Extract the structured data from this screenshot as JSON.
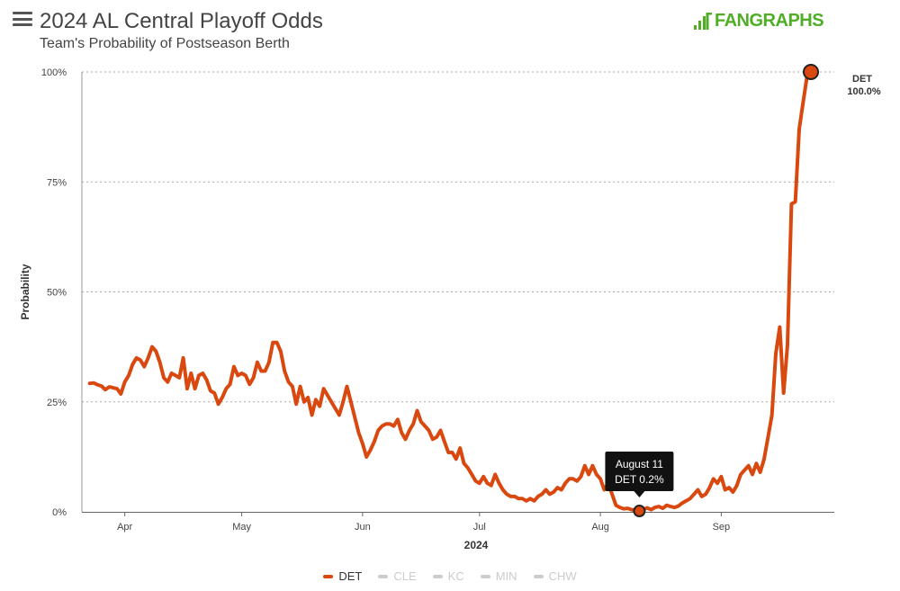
{
  "header": {
    "title": "2024 AL Central Playoff Odds",
    "subtitle": "Team's Probability of Postseason Berth",
    "logo_text": "FANGRAPHS"
  },
  "colors": {
    "det": "#d9480f",
    "grid": "#aaaaaa",
    "axis": "#666666",
    "legend_inactive": "#cccccc",
    "logo": "#50ae26"
  },
  "chart_data": {
    "type": "line",
    "xlabel": "2024",
    "ylabel": "Probability",
    "ylim": [
      0,
      100
    ],
    "yticks": [
      0,
      25,
      50,
      75,
      100
    ],
    "ytick_labels": [
      "0%",
      "25%",
      "50%",
      "75%",
      "100%"
    ],
    "x_domain": [
      "2024-03-21",
      "2024-09-30"
    ],
    "month_ticks": [
      {
        "date": "2024-04-01",
        "label": "Apr"
      },
      {
        "date": "2024-05-01",
        "label": "May"
      },
      {
        "date": "2024-06-01",
        "label": "Jun"
      },
      {
        "date": "2024-07-01",
        "label": "Jul"
      },
      {
        "date": "2024-08-01",
        "label": "Aug"
      },
      {
        "date": "2024-09-01",
        "label": "Sep"
      }
    ],
    "grid": true,
    "legend_position": "bottom",
    "series": [
      {
        "name": "DET",
        "active": true,
        "end_label": "DET",
        "end_value_label": "100.0%",
        "points": [
          [
            "2024-03-23",
            29.2
          ],
          [
            "2024-03-24",
            29.3
          ],
          [
            "2024-03-25",
            28.9
          ],
          [
            "2024-03-26",
            28.6
          ],
          [
            "2024-03-27",
            27.8
          ],
          [
            "2024-03-28",
            28.4
          ],
          [
            "2024-03-29",
            28.2
          ],
          [
            "2024-03-30",
            28.0
          ],
          [
            "2024-03-31",
            26.8
          ],
          [
            "2024-04-01",
            29.5
          ],
          [
            "2024-04-02",
            31.0
          ],
          [
            "2024-04-03",
            33.5
          ],
          [
            "2024-04-04",
            35.0
          ],
          [
            "2024-04-05",
            34.5
          ],
          [
            "2024-04-06",
            33.0
          ],
          [
            "2024-04-07",
            35.0
          ],
          [
            "2024-04-08",
            37.5
          ],
          [
            "2024-04-09",
            36.5
          ],
          [
            "2024-04-10",
            34.0
          ],
          [
            "2024-04-11",
            30.5
          ],
          [
            "2024-04-12",
            29.5
          ],
          [
            "2024-04-13",
            31.5
          ],
          [
            "2024-04-14",
            31.0
          ],
          [
            "2024-04-15",
            30.5
          ],
          [
            "2024-04-16",
            35.0
          ],
          [
            "2024-04-17",
            28.0
          ],
          [
            "2024-04-18",
            31.5
          ],
          [
            "2024-04-19",
            28.0
          ],
          [
            "2024-04-20",
            31.0
          ],
          [
            "2024-04-21",
            31.5
          ],
          [
            "2024-04-22",
            30.0
          ],
          [
            "2024-04-23",
            27.5
          ],
          [
            "2024-04-24",
            27.0
          ],
          [
            "2024-04-25",
            24.5
          ],
          [
            "2024-04-26",
            26.0
          ],
          [
            "2024-04-27",
            28.0
          ],
          [
            "2024-04-28",
            29.0
          ],
          [
            "2024-04-29",
            33.0
          ],
          [
            "2024-04-30",
            31.0
          ],
          [
            "2024-05-01",
            31.5
          ],
          [
            "2024-05-02",
            31.0
          ],
          [
            "2024-05-03",
            29.0
          ],
          [
            "2024-05-04",
            30.5
          ],
          [
            "2024-05-05",
            34.0
          ],
          [
            "2024-05-06",
            32.0
          ],
          [
            "2024-05-07",
            32.0
          ],
          [
            "2024-05-08",
            34.0
          ],
          [
            "2024-05-09",
            38.5
          ],
          [
            "2024-05-10",
            38.5
          ],
          [
            "2024-05-11",
            36.5
          ],
          [
            "2024-05-12",
            32.0
          ],
          [
            "2024-05-13",
            29.5
          ],
          [
            "2024-05-14",
            28.5
          ],
          [
            "2024-05-15",
            24.5
          ],
          [
            "2024-05-16",
            28.5
          ],
          [
            "2024-05-17",
            25.0
          ],
          [
            "2024-05-18",
            26.0
          ],
          [
            "2024-05-19",
            22.0
          ],
          [
            "2024-05-20",
            25.5
          ],
          [
            "2024-05-21",
            24.0
          ],
          [
            "2024-05-22",
            28.0
          ],
          [
            "2024-05-23",
            26.5
          ],
          [
            "2024-05-24",
            25.0
          ],
          [
            "2024-05-25",
            23.5
          ],
          [
            "2024-05-26",
            22.0
          ],
          [
            "2024-05-27",
            25.0
          ],
          [
            "2024-05-28",
            28.5
          ],
          [
            "2024-05-29",
            25.0
          ],
          [
            "2024-05-30",
            21.5
          ],
          [
            "2024-05-31",
            18.0
          ],
          [
            "2024-06-01",
            15.5
          ],
          [
            "2024-06-02",
            12.5
          ],
          [
            "2024-06-03",
            14.0
          ],
          [
            "2024-06-04",
            16.0
          ],
          [
            "2024-06-05",
            18.5
          ],
          [
            "2024-06-06",
            19.5
          ],
          [
            "2024-06-07",
            20.0
          ],
          [
            "2024-06-08",
            20.0
          ],
          [
            "2024-06-09",
            19.5
          ],
          [
            "2024-06-10",
            21.0
          ],
          [
            "2024-06-11",
            18.0
          ],
          [
            "2024-06-12",
            16.5
          ],
          [
            "2024-06-13",
            18.5
          ],
          [
            "2024-06-14",
            20.0
          ],
          [
            "2024-06-15",
            23.0
          ],
          [
            "2024-06-16",
            20.5
          ],
          [
            "2024-06-17",
            19.5
          ],
          [
            "2024-06-18",
            18.5
          ],
          [
            "2024-06-19",
            16.5
          ],
          [
            "2024-06-20",
            17.0
          ],
          [
            "2024-06-21",
            18.5
          ],
          [
            "2024-06-22",
            16.0
          ],
          [
            "2024-06-23",
            13.5
          ],
          [
            "2024-06-24",
            13.5
          ],
          [
            "2024-06-25",
            12.0
          ],
          [
            "2024-06-26",
            14.5
          ],
          [
            "2024-06-27",
            11.0
          ],
          [
            "2024-06-28",
            10.0
          ],
          [
            "2024-06-29",
            8.5
          ],
          [
            "2024-06-30",
            7.0
          ],
          [
            "2024-07-01",
            6.5
          ],
          [
            "2024-07-02",
            8.0
          ],
          [
            "2024-07-03",
            6.5
          ],
          [
            "2024-07-04",
            6.0
          ],
          [
            "2024-07-05",
            8.5
          ],
          [
            "2024-07-06",
            6.5
          ],
          [
            "2024-07-07",
            5.0
          ],
          [
            "2024-07-08",
            4.0
          ],
          [
            "2024-07-09",
            3.5
          ],
          [
            "2024-07-10",
            3.5
          ],
          [
            "2024-07-11",
            3.0
          ],
          [
            "2024-07-12",
            3.0
          ],
          [
            "2024-07-13",
            2.5
          ],
          [
            "2024-07-14",
            3.0
          ],
          [
            "2024-07-15",
            2.5
          ],
          [
            "2024-07-16",
            3.5
          ],
          [
            "2024-07-17",
            4.0
          ],
          [
            "2024-07-18",
            5.0
          ],
          [
            "2024-07-19",
            4.0
          ],
          [
            "2024-07-20",
            4.5
          ],
          [
            "2024-07-21",
            5.5
          ],
          [
            "2024-07-22",
            5.0
          ],
          [
            "2024-07-23",
            6.5
          ],
          [
            "2024-07-24",
            7.5
          ],
          [
            "2024-07-25",
            7.5
          ],
          [
            "2024-07-26",
            7.0
          ],
          [
            "2024-07-27",
            8.0
          ],
          [
            "2024-07-28",
            10.5
          ],
          [
            "2024-07-29",
            8.5
          ],
          [
            "2024-07-30",
            10.5
          ],
          [
            "2024-07-31",
            8.5
          ],
          [
            "2024-08-01",
            7.5
          ],
          [
            "2024-08-02",
            5.0
          ],
          [
            "2024-08-03",
            6.5
          ],
          [
            "2024-08-04",
            4.0
          ],
          [
            "2024-08-05",
            1.5
          ],
          [
            "2024-08-06",
            1.0
          ],
          [
            "2024-08-07",
            0.7
          ],
          [
            "2024-08-08",
            0.8
          ],
          [
            "2024-08-09",
            0.5
          ],
          [
            "2024-08-10",
            0.4
          ],
          [
            "2024-08-11",
            0.2
          ],
          [
            "2024-08-12",
            0.6
          ],
          [
            "2024-08-13",
            0.9
          ],
          [
            "2024-08-14",
            0.5
          ],
          [
            "2024-08-15",
            1.0
          ],
          [
            "2024-08-16",
            1.2
          ],
          [
            "2024-08-17",
            0.8
          ],
          [
            "2024-08-18",
            1.5
          ],
          [
            "2024-08-19",
            1.2
          ],
          [
            "2024-08-20",
            1.0
          ],
          [
            "2024-08-21",
            1.3
          ],
          [
            "2024-08-22",
            2.0
          ],
          [
            "2024-08-23",
            2.5
          ],
          [
            "2024-08-24",
            3.0
          ],
          [
            "2024-08-25",
            4.0
          ],
          [
            "2024-08-26",
            5.0
          ],
          [
            "2024-08-27",
            3.5
          ],
          [
            "2024-08-28",
            4.0
          ],
          [
            "2024-08-29",
            5.5
          ],
          [
            "2024-08-30",
            7.5
          ],
          [
            "2024-08-31",
            6.5
          ],
          [
            "2024-09-01",
            8.0
          ],
          [
            "2024-09-02",
            5.0
          ],
          [
            "2024-09-03",
            5.5
          ],
          [
            "2024-09-04",
            4.5
          ],
          [
            "2024-09-05",
            6.0
          ],
          [
            "2024-09-06",
            8.5
          ],
          [
            "2024-09-07",
            9.5
          ],
          [
            "2024-09-08",
            10.5
          ],
          [
            "2024-09-09",
            8.5
          ],
          [
            "2024-09-10",
            11.0
          ],
          [
            "2024-09-11",
            9.0
          ],
          [
            "2024-09-12",
            12.0
          ],
          [
            "2024-09-13",
            17.0
          ],
          [
            "2024-09-14",
            22.0
          ],
          [
            "2024-09-15",
            36.0
          ],
          [
            "2024-09-16",
            42.0
          ],
          [
            "2024-09-17",
            27.0
          ],
          [
            "2024-09-18",
            38.0
          ],
          [
            "2024-09-19",
            70.0
          ],
          [
            "2024-09-20",
            70.5
          ],
          [
            "2024-09-21",
            87.0
          ],
          [
            "2024-09-22",
            93.0
          ],
          [
            "2024-09-23",
            99.0
          ],
          [
            "2024-09-24",
            100.0
          ]
        ]
      },
      {
        "name": "CLE",
        "active": false,
        "points": []
      },
      {
        "name": "KC",
        "active": false,
        "points": []
      },
      {
        "name": "MIN",
        "active": false,
        "points": []
      },
      {
        "name": "CHW",
        "active": false,
        "points": []
      }
    ],
    "tooltip": {
      "date": "2024-08-11",
      "value": 0.2,
      "line1": "August 11",
      "line2": "DET 0.2%"
    }
  }
}
